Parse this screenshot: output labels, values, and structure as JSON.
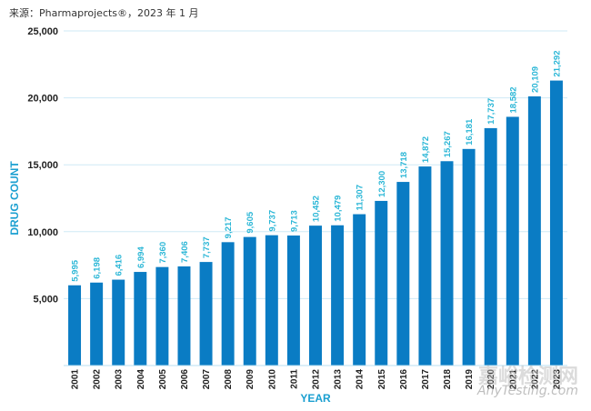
{
  "source_note": "来源：Pharmaprojects®，2023 年 1 月",
  "watermark": {
    "main": "嘉峪检测网",
    "sub": "AnyTesting.com"
  },
  "colors": {
    "bar": "#0a7cc4",
    "label": "#29b6d6",
    "axis": "#1a9fd0",
    "grid": "#cfeaf6",
    "tick": "#222222"
  },
  "chart_data": {
    "type": "bar",
    "categories": [
      "2001",
      "2002",
      "2003",
      "2004",
      "2005",
      "2006",
      "2007",
      "2008",
      "2009",
      "2010",
      "2011",
      "2012",
      "2013",
      "2014",
      "2015",
      "2016",
      "2017",
      "2018",
      "2019",
      "2020",
      "2021",
      "2022",
      "2023"
    ],
    "values": [
      5995,
      6198,
      6416,
      6994,
      7360,
      7406,
      7737,
      9217,
      9605,
      9737,
      9713,
      10452,
      10479,
      11307,
      12300,
      13718,
      14872,
      15267,
      16181,
      17737,
      18582,
      20109,
      21292
    ],
    "value_labels": [
      "5,995",
      "6,198",
      "6,416",
      "6,994",
      "7,360",
      "7,406",
      "7,737",
      "9,217",
      "9,605",
      "9,737",
      "9,713",
      "10,452",
      "10,479",
      "11,307",
      "12,300",
      "13,718",
      "14,872",
      "15,267",
      "16,181",
      "17,737",
      "18,582",
      "20,109",
      "21,292"
    ],
    "xlabel": "YEAR",
    "ylabel": "DRUG COUNT",
    "ylim": [
      0,
      25000
    ],
    "yticks": [
      5000,
      10000,
      15000,
      20000,
      25000
    ],
    "ytick_labels": [
      "5,000",
      "10,000",
      "15,000",
      "20,000",
      "25,000"
    ],
    "grid": true
  }
}
